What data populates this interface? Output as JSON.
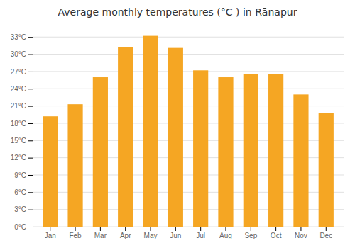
{
  "chart_data": {
    "type": "bar",
    "title": "Average monthly temperatures (°C ) in Rānapur",
    "categories": [
      "Jan",
      "Feb",
      "Mar",
      "Apr",
      "May",
      "Jun",
      "Jul",
      "Aug",
      "Sep",
      "Oct",
      "Nov",
      "Dec"
    ],
    "values": [
      19.2,
      21.3,
      26.0,
      31.2,
      33.2,
      31.1,
      27.2,
      26.0,
      26.5,
      26.5,
      23.0,
      19.8
    ],
    "color": "#F5A623",
    "ylim": [
      0,
      35
    ],
    "yticks": [
      {
        "value": 0,
        "label": "0°C"
      },
      {
        "value": 3,
        "label": "3°C"
      },
      {
        "value": 6,
        "label": "6°C"
      },
      {
        "value": 9,
        "label": "9°C"
      },
      {
        "value": 12,
        "label": "12°C"
      },
      {
        "value": 15,
        "label": "15°C"
      },
      {
        "value": 18,
        "label": "18°C"
      },
      {
        "value": 21,
        "label": "21°C"
      },
      {
        "value": 24,
        "label": "24°C"
      },
      {
        "value": 27,
        "label": "27°C"
      },
      {
        "value": 30,
        "label": "30°C"
      },
      {
        "value": 33,
        "label": "33°C"
      }
    ],
    "grid": true
  }
}
